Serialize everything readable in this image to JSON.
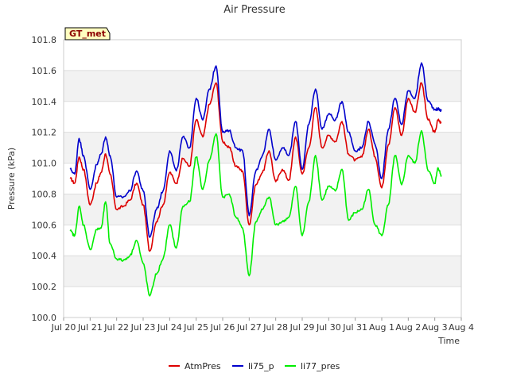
{
  "chart_data": {
    "type": "line",
    "title": "Air Pressure",
    "xlabel": "Time",
    "ylabel": "Pressure (kPa)",
    "annotation": "GT_met",
    "ylim": [
      100.0,
      101.8
    ],
    "yticks": [
      100.0,
      100.2,
      100.4,
      100.6,
      100.8,
      101.0,
      101.2,
      101.4,
      101.6,
      101.8
    ],
    "ytick_labels": [
      "100.0",
      "100.2",
      "100.4",
      "100.6",
      "100.8",
      "101.0",
      "101.2",
      "101.4",
      "101.6",
      "101.8"
    ],
    "xlim": [
      "2024-07-20",
      "2024-08-04"
    ],
    "xtick_labels": [
      "Jul 20",
      "Jul 21",
      "Jul 22",
      "Jul 23",
      "Jul 24",
      "Jul 25",
      "Jul 26",
      "Jul 27",
      "Jul 28",
      "Jul 29",
      "Jul 30",
      "Jul 31",
      "Aug 1",
      "Aug 2",
      "Aug 3",
      "Aug 4"
    ],
    "band_shading": "alternating gray bands between y ticks",
    "legend_position": "bottom",
    "series": [
      {
        "name": "AtmPres",
        "color": "#dd0000",
        "x": [
          "Jul 20 06:00",
          "Jul 20 10:00",
          "Jul 20 14:00",
          "Jul 20 18:00",
          "Jul 21 00:00",
          "Jul 21 06:00",
          "Jul 21 10:00",
          "Jul 21 14:00",
          "Jul 21 18:00",
          "Jul 22 00:00",
          "Jul 22 06:00",
          "Jul 22 12:00",
          "Jul 22 18:00",
          "Jul 23 00:00",
          "Jul 23 06:00",
          "Jul 23 12:00",
          "Jul 23 18:00",
          "Jul 24 00:00",
          "Jul 24 06:00",
          "Jul 24 12:00",
          "Jul 24 18:00",
          "Jul 25 00:00",
          "Jul 25 06:00",
          "Jul 25 12:00",
          "Jul 25 18:00",
          "Jul 26 00:00",
          "Jul 26 06:00",
          "Jul 26 12:00",
          "Jul 26 18:00",
          "Jul 27 00:00",
          "Jul 27 06:00",
          "Jul 27 12:00",
          "Jul 27 18:00",
          "Jul 28 00:00",
          "Jul 28 06:00",
          "Jul 28 12:00",
          "Jul 28 18:00",
          "Jul 29 00:00",
          "Jul 29 06:00",
          "Jul 29 12:00",
          "Jul 29 18:00",
          "Jul 30 00:00",
          "Jul 30 06:00",
          "Jul 30 12:00",
          "Jul 30 18:00",
          "Jul 31 00:00",
          "Jul 31 06:00",
          "Jul 31 12:00",
          "Jul 31 18:00",
          "Aug 1 00:00",
          "Aug 1 06:00",
          "Aug 1 12:00",
          "Aug 1 18:00",
          "Aug 2 00:00",
          "Aug 2 06:00",
          "Aug 2 12:00",
          "Aug 2 18:00",
          "Aug 3 00:00",
          "Aug 3 03:00",
          "Aug 3 06:00"
        ],
        "y": [
          100.9,
          100.87,
          101.04,
          100.96,
          100.73,
          100.87,
          100.94,
          101.06,
          100.93,
          100.7,
          100.72,
          100.76,
          100.87,
          100.73,
          100.43,
          100.62,
          100.73,
          100.94,
          100.87,
          101.03,
          100.98,
          101.28,
          101.17,
          101.38,
          101.52,
          101.14,
          101.1,
          100.98,
          100.95,
          100.6,
          100.86,
          100.94,
          101.08,
          100.88,
          100.96,
          100.89,
          101.17,
          100.93,
          101.1,
          101.36,
          101.1,
          101.18,
          101.14,
          101.27,
          101.06,
          101.02,
          101.04,
          101.22,
          101.04,
          100.84,
          101.12,
          101.36,
          101.18,
          101.42,
          101.33,
          101.52,
          101.28,
          101.2,
          101.28,
          101.26
        ]
      },
      {
        "name": "li75_p",
        "color": "#0000cc",
        "x": [
          "Jul 20 06:00",
          "Jul 20 10:00",
          "Jul 20 14:00",
          "Jul 20 18:00",
          "Jul 21 00:00",
          "Jul 21 06:00",
          "Jul 21 10:00",
          "Jul 21 14:00",
          "Jul 21 18:00",
          "Jul 22 00:00",
          "Jul 22 06:00",
          "Jul 22 12:00",
          "Jul 22 18:00",
          "Jul 23 00:00",
          "Jul 23 06:00",
          "Jul 23 12:00",
          "Jul 23 18:00",
          "Jul 24 00:00",
          "Jul 24 06:00",
          "Jul 24 12:00",
          "Jul 24 18:00",
          "Jul 25 00:00",
          "Jul 25 06:00",
          "Jul 25 12:00",
          "Jul 25 18:00",
          "Jul 26 00:00",
          "Jul 26 06:00",
          "Jul 26 12:00",
          "Jul 26 18:00",
          "Jul 27 00:00",
          "Jul 27 06:00",
          "Jul 27 12:00",
          "Jul 27 18:00",
          "Jul 28 00:00",
          "Jul 28 06:00",
          "Jul 28 12:00",
          "Jul 28 18:00",
          "Jul 29 00:00",
          "Jul 29 06:00",
          "Jul 29 12:00",
          "Jul 29 18:00",
          "Jul 30 00:00",
          "Jul 30 06:00",
          "Jul 30 12:00",
          "Jul 30 18:00",
          "Jul 31 00:00",
          "Jul 31 06:00",
          "Jul 31 12:00",
          "Jul 31 18:00",
          "Aug 1 00:00",
          "Aug 1 06:00",
          "Aug 1 12:00",
          "Aug 1 18:00",
          "Aug 2 00:00",
          "Aug 2 06:00",
          "Aug 2 12:00",
          "Aug 2 18:00",
          "Aug 3 00:00",
          "Aug 3 03:00",
          "Aug 3 06:00"
        ],
        "y": [
          100.96,
          100.93,
          101.16,
          101.05,
          100.83,
          100.99,
          101.06,
          101.17,
          101.05,
          100.78,
          100.78,
          100.82,
          100.95,
          100.82,
          100.52,
          100.7,
          100.82,
          101.08,
          100.95,
          101.17,
          101.1,
          101.42,
          101.28,
          101.48,
          101.63,
          101.2,
          101.21,
          101.1,
          101.08,
          100.66,
          100.95,
          101.05,
          101.22,
          101.02,
          101.1,
          101.05,
          101.27,
          100.96,
          101.25,
          101.48,
          101.22,
          101.32,
          101.28,
          101.4,
          101.2,
          101.08,
          101.1,
          101.27,
          101.12,
          100.9,
          101.22,
          101.42,
          101.25,
          101.47,
          101.42,
          101.65,
          101.4,
          101.35,
          101.35,
          101.34
        ]
      },
      {
        "name": "li77_pres",
        "color": "#00ee00",
        "x": [
          "Jul 20 06:00",
          "Jul 20 10:00",
          "Jul 20 14:00",
          "Jul 20 18:00",
          "Jul 21 00:00",
          "Jul 21 06:00",
          "Jul 21 10:00",
          "Jul 21 14:00",
          "Jul 21 18:00",
          "Jul 22 00:00",
          "Jul 22 06:00",
          "Jul 22 12:00",
          "Jul 22 18:00",
          "Jul 23 00:00",
          "Jul 23 06:00",
          "Jul 23 12:00",
          "Jul 23 18:00",
          "Jul 24 00:00",
          "Jul 24 06:00",
          "Jul 24 12:00",
          "Jul 24 18:00",
          "Jul 25 00:00",
          "Jul 25 06:00",
          "Jul 25 12:00",
          "Jul 25 18:00",
          "Jul 26 00:00",
          "Jul 26 06:00",
          "Jul 26 12:00",
          "Jul 26 18:00",
          "Jul 27 00:00",
          "Jul 27 06:00",
          "Jul 27 12:00",
          "Jul 27 18:00",
          "Jul 28 00:00",
          "Jul 28 06:00",
          "Jul 28 12:00",
          "Jul 28 18:00",
          "Jul 29 00:00",
          "Jul 29 06:00",
          "Jul 29 12:00",
          "Jul 29 18:00",
          "Jul 30 00:00",
          "Jul 30 06:00",
          "Jul 30 12:00",
          "Jul 30 18:00",
          "Jul 31 00:00",
          "Jul 31 06:00",
          "Jul 31 12:00",
          "Jul 31 18:00",
          "Aug 1 00:00",
          "Aug 1 06:00",
          "Aug 1 12:00",
          "Aug 1 18:00",
          "Aug 2 00:00",
          "Aug 2 06:00",
          "Aug 2 12:00",
          "Aug 2 18:00",
          "Aug 3 00:00",
          "Aug 3 03:00",
          "Aug 3 06:00"
        ],
        "y": [
          100.56,
          100.53,
          100.72,
          100.6,
          100.44,
          100.57,
          100.58,
          100.75,
          100.48,
          100.38,
          100.37,
          100.4,
          100.5,
          100.35,
          100.14,
          100.28,
          100.38,
          100.6,
          100.45,
          100.72,
          100.75,
          101.04,
          100.83,
          101.02,
          101.19,
          100.78,
          100.8,
          100.65,
          100.58,
          100.27,
          100.62,
          100.7,
          100.78,
          100.6,
          100.62,
          100.65,
          100.85,
          100.53,
          100.75,
          101.05,
          100.76,
          100.85,
          100.82,
          100.96,
          100.63,
          100.68,
          100.7,
          100.83,
          100.6,
          100.53,
          100.73,
          101.05,
          100.86,
          101.05,
          101.0,
          101.21,
          100.95,
          100.87,
          100.97,
          100.92
        ]
      }
    ]
  }
}
